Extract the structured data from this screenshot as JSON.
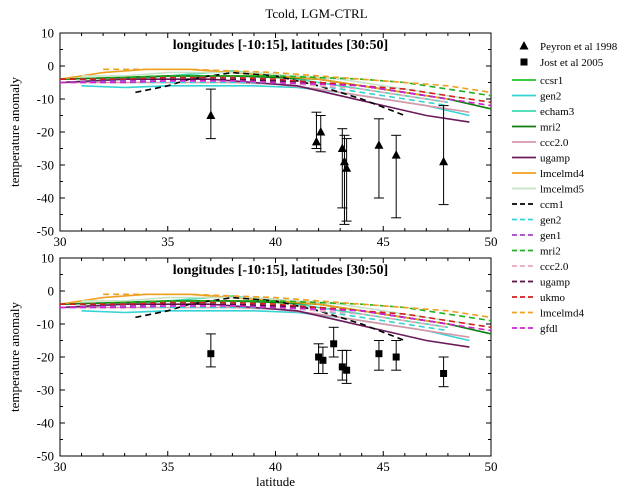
{
  "figure_title": "Tcold, LGM-CTRL",
  "chart_data": [
    {
      "type": "line",
      "panel_title": "longitudes [-10:15], latitudes [30:50]",
      "xlabel": "",
      "ylabel": "temperature anomaly",
      "xlim": [
        30,
        50
      ],
      "ylim": [
        -50,
        10
      ],
      "x_ticks": [
        "30",
        "35",
        "40",
        "45",
        "50"
      ],
      "y_ticks": [
        "10",
        "0",
        "-10",
        "-20",
        "-30",
        "-40",
        "-50"
      ],
      "observations": {
        "name": "Peyron et al 1998",
        "marker": "triangle",
        "points": [
          {
            "x": 37.0,
            "y": -15,
            "err_lo": -22,
            "err_hi": -7
          },
          {
            "x": 41.9,
            "y": -23,
            "err_lo": -25,
            "err_hi": -14
          },
          {
            "x": 42.1,
            "y": -20,
            "err_lo": -26,
            "err_hi": -15
          },
          {
            "x": 43.1,
            "y": -25,
            "err_lo": -43,
            "err_hi": -19
          },
          {
            "x": 43.2,
            "y": -29,
            "err_lo": -48,
            "err_hi": -21
          },
          {
            "x": 43.3,
            "y": -31,
            "err_lo": -47,
            "err_hi": -22
          },
          {
            "x": 44.8,
            "y": -24,
            "err_lo": -40,
            "err_hi": -16
          },
          {
            "x": 45.6,
            "y": -27,
            "err_lo": -46,
            "err_hi": -21
          },
          {
            "x": 47.8,
            "y": -29,
            "err_lo": -42,
            "err_hi": -12
          }
        ]
      }
    },
    {
      "type": "line",
      "panel_title": "longitudes [-10:15], latitudes [30:50]",
      "xlabel": "latitude",
      "ylabel": "temperature anomaly",
      "xlim": [
        30,
        50
      ],
      "ylim": [
        -50,
        10
      ],
      "x_ticks": [
        "30",
        "35",
        "40",
        "45",
        "50"
      ],
      "y_ticks": [
        "10",
        "0",
        "-10",
        "-20",
        "-30",
        "-40",
        "-50"
      ],
      "observations": {
        "name": "Jost et al 2005",
        "marker": "square",
        "points": [
          {
            "x": 37.0,
            "y": -19,
            "err_lo": -23,
            "err_hi": -13
          },
          {
            "x": 42.0,
            "y": -20,
            "err_lo": -25,
            "err_hi": -16
          },
          {
            "x": 42.2,
            "y": -21,
            "err_lo": -25,
            "err_hi": -17
          },
          {
            "x": 42.7,
            "y": -16,
            "err_lo": -20,
            "err_hi": -11
          },
          {
            "x": 43.1,
            "y": -23,
            "err_lo": -27,
            "err_hi": -18
          },
          {
            "x": 43.3,
            "y": -24,
            "err_lo": -28,
            "err_hi": -18
          },
          {
            "x": 44.8,
            "y": -19,
            "err_lo": -24,
            "err_hi": -15
          },
          {
            "x": 45.6,
            "y": -20,
            "err_lo": -24,
            "err_hi": -15
          },
          {
            "x": 47.8,
            "y": -25,
            "err_lo": -29,
            "err_hi": -20
          }
        ]
      }
    }
  ],
  "model_series": [
    {
      "name": "ccsr1",
      "color": "#22c222",
      "dash": false,
      "x": [
        30,
        35,
        40,
        42,
        44,
        46,
        48,
        50
      ],
      "y": [
        -4,
        -3,
        -3,
        -4,
        -6,
        -8,
        -10,
        -13
      ]
    },
    {
      "name": "gen2",
      "color": "#35d3d3",
      "dash": false,
      "x": [
        31,
        33,
        35,
        37,
        39,
        41,
        43,
        45,
        47,
        49
      ],
      "y": [
        -6,
        -6.5,
        -6,
        -6,
        -6,
        -6.5,
        -8,
        -10,
        -12,
        -15
      ]
    },
    {
      "name": "echam3",
      "color": "#3fd9b0",
      "dash": false,
      "x": [
        30,
        33,
        35,
        37,
        38,
        40,
        42,
        44,
        46,
        48
      ],
      "y": [
        -5,
        -4,
        -3,
        -2,
        -1.5,
        -3,
        -5,
        -7,
        -9,
        -11
      ]
    },
    {
      "name": "mri2",
      "color": "#107c10",
      "dash": false,
      "x": [
        30,
        33,
        35,
        38,
        40,
        42,
        44,
        46,
        48,
        50
      ],
      "y": [
        -4,
        -3.5,
        -3,
        -3,
        -3.5,
        -4,
        -6,
        -8,
        -10,
        -13
      ]
    },
    {
      "name": "ccc2.0",
      "color": "#d898a8",
      "dash": false,
      "x": [
        30,
        33,
        35,
        38,
        40,
        42,
        44,
        46,
        48,
        49
      ],
      "y": [
        -5,
        -5,
        -5,
        -5,
        -5.5,
        -7,
        -9,
        -11,
        -13,
        -14
      ]
    },
    {
      "name": "ugamp",
      "color": "#6b1a5c",
      "dash": false,
      "x": [
        30,
        33,
        35,
        37,
        39,
        41,
        43,
        45,
        47,
        49
      ],
      "y": [
        -5,
        -4,
        -4,
        -4,
        -5,
        -6,
        -9,
        -12,
        -15,
        -17
      ]
    },
    {
      "name": "lmcelmd4",
      "color": "#f0a020",
      "dash": false,
      "x": [
        30,
        32,
        34,
        36,
        38,
        40,
        42,
        44,
        46,
        48
      ],
      "y": [
        -4,
        -2,
        -1,
        -1,
        -2,
        -3,
        -4,
        -6,
        -8,
        -10
      ]
    },
    {
      "name": "lmcelmd5",
      "color": "#c7e3c7",
      "dash": false,
      "x": [
        31,
        33,
        35,
        37,
        39,
        41,
        43,
        45,
        47,
        49
      ],
      "y": [
        -3,
        -3,
        -2,
        -2,
        -2,
        -3,
        -4,
        -6,
        -8,
        -10
      ]
    },
    {
      "name": "ccm1",
      "color": "#000000",
      "dash": true,
      "x": [
        33.5,
        35,
        36,
        37,
        38,
        40,
        42,
        44,
        46
      ],
      "y": [
        -8,
        -6,
        -4,
        -3,
        -2,
        -3,
        -6,
        -10,
        -15
      ]
    },
    {
      "name": "gen2",
      "color": "#35d3d3",
      "dash": true,
      "x": [
        30,
        33,
        35,
        38,
        40,
        42,
        44,
        46,
        48
      ],
      "y": [
        -5,
        -5,
        -5,
        -5,
        -5,
        -6,
        -8,
        -10,
        -12
      ]
    },
    {
      "name": "gen1",
      "color": "#a040c8",
      "dash": true,
      "x": [
        30,
        33,
        35,
        38,
        40,
        42,
        44,
        46,
        48
      ],
      "y": [
        -5,
        -4.5,
        -4,
        -4,
        -4.5,
        -5,
        -6,
        -8,
        -10
      ]
    },
    {
      "name": "mri2",
      "color": "#22b022",
      "dash": true,
      "x": [
        30,
        33,
        35,
        38,
        40,
        42,
        44,
        46,
        48,
        50
      ],
      "y": [
        -4,
        -3.5,
        -3,
        -3,
        -3,
        -3.5,
        -4,
        -5,
        -7,
        -9
      ]
    },
    {
      "name": "ccc2.0",
      "color": "#e8a8c0",
      "dash": true,
      "x": [
        30,
        33,
        35,
        38,
        40,
        42,
        44,
        46,
        48
      ],
      "y": [
        -5,
        -5,
        -4.5,
        -4.5,
        -5,
        -6,
        -7,
        -9,
        -11
      ]
    },
    {
      "name": "ugamp",
      "color": "#5a1040",
      "dash": true,
      "x": [
        30,
        33,
        35,
        38,
        40,
        42,
        44,
        46,
        48
      ],
      "y": [
        -4,
        -4,
        -4,
        -4,
        -4.5,
        -5,
        -6,
        -8,
        -10
      ]
    },
    {
      "name": "ukmo",
      "color": "#d02020",
      "dash": true,
      "x": [
        30,
        33,
        35,
        38,
        40,
        42,
        44,
        46,
        48,
        50
      ],
      "y": [
        -4,
        -4,
        -3.5,
        -3.5,
        -4,
        -5,
        -6,
        -7,
        -9,
        -11
      ]
    },
    {
      "name": "lmcelmd4",
      "color": "#f0a020",
      "dash": true,
      "x": [
        32,
        34,
        36,
        38,
        40,
        42,
        44,
        46,
        48,
        50
      ],
      "y": [
        -1,
        -1,
        -1,
        -1.5,
        -2,
        -3,
        -4,
        -5,
        -6,
        -8
      ]
    },
    {
      "name": "gfdl",
      "color": "#d020d0",
      "dash": true,
      "x": [
        30,
        33,
        35,
        38,
        40,
        42,
        44,
        46,
        48,
        50
      ],
      "y": [
        -5,
        -5,
        -4.5,
        -4.5,
        -5,
        -5.5,
        -6,
        -8,
        -10,
        -12
      ]
    }
  ],
  "legend": {
    "observations": [
      {
        "label": "Peyron et al 1998",
        "marker": "triangle"
      },
      {
        "label": "Jost et al 2005",
        "marker": "square"
      }
    ],
    "placement": "right"
  }
}
